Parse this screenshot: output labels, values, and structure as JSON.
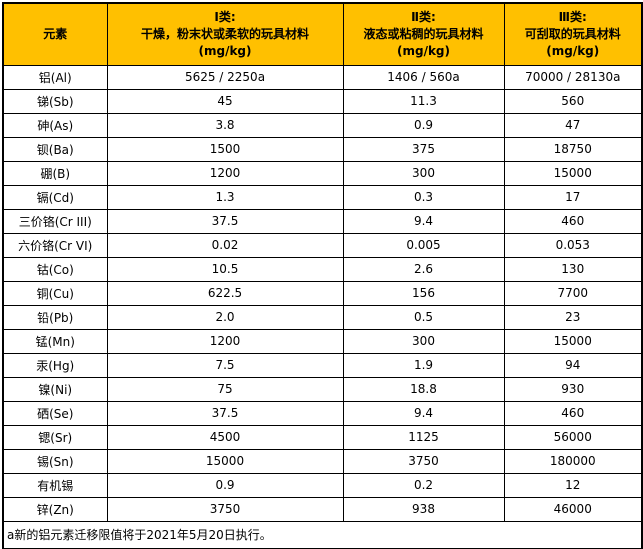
{
  "colors": {
    "header_bg": "#FFC000",
    "border": "#000000",
    "text": "#000000",
    "bottom_border": "#999999"
  },
  "table": {
    "element_header": "元素",
    "header_columns": [
      {
        "class_label": "Ⅰ类:",
        "description": "干燥，粉末状或柔软的玩具材料",
        "unit": "(mg/kg)"
      },
      {
        "class_label": "Ⅱ类:",
        "description": "液态或粘稠的玩具材料",
        "unit": "(mg/kg)"
      },
      {
        "class_label": "Ⅲ类:",
        "description": "可刮取的玩具材料",
        "unit": "(mg/kg)"
      }
    ],
    "rows": [
      {
        "element": "铝(Al)",
        "values": [
          "5625 / 2250a",
          "1406 / 560a",
          "70000 / 28130a"
        ]
      },
      {
        "element": "锑(Sb)",
        "values": [
          "45",
          "11.3",
          "560"
        ]
      },
      {
        "element": "砷(As)",
        "values": [
          "3.8",
          "0.9",
          "47"
        ]
      },
      {
        "element": "钡(Ba)",
        "values": [
          "1500",
          "375",
          "18750"
        ]
      },
      {
        "element": "硼(B)",
        "values": [
          "1200",
          "300",
          "15000"
        ]
      },
      {
        "element": "镉(Cd)",
        "values": [
          "1.3",
          "0.3",
          "17"
        ]
      },
      {
        "element": "三价铬(Cr III)",
        "values": [
          "37.5",
          "9.4",
          "460"
        ]
      },
      {
        "element": "六价铬(Cr VI)",
        "values": [
          "0.02",
          "0.005",
          "0.053"
        ]
      },
      {
        "element": "钴(Co)",
        "values": [
          "10.5",
          "2.6",
          "130"
        ]
      },
      {
        "element": "铜(Cu)",
        "values": [
          "622.5",
          "156",
          "7700"
        ]
      },
      {
        "element": "铅(Pb)",
        "values": [
          "2.0",
          "0.5",
          "23"
        ]
      },
      {
        "element": "锰(Mn)",
        "values": [
          "1200",
          "300",
          "15000"
        ]
      },
      {
        "element": "汞(Hg)",
        "values": [
          "7.5",
          "1.9",
          "94"
        ]
      },
      {
        "element": "镍(Ni)",
        "values": [
          "75",
          "18.8",
          "930"
        ]
      },
      {
        "element": "硒(Se)",
        "values": [
          "37.5",
          "9.4",
          "460"
        ]
      },
      {
        "element": "锶(Sr)",
        "values": [
          "4500",
          "1125",
          "56000"
        ]
      },
      {
        "element": "锡(Sn)",
        "values": [
          "15000",
          "3750",
          "180000"
        ]
      },
      {
        "element": "有机锡",
        "values": [
          "0.9",
          "0.2",
          "12"
        ]
      },
      {
        "element": "锌(Zn)",
        "values": [
          "3750",
          "938",
          "46000"
        ]
      }
    ],
    "footnote": "a新的铝元素迁移限值将于2021年5月20日执行。"
  }
}
